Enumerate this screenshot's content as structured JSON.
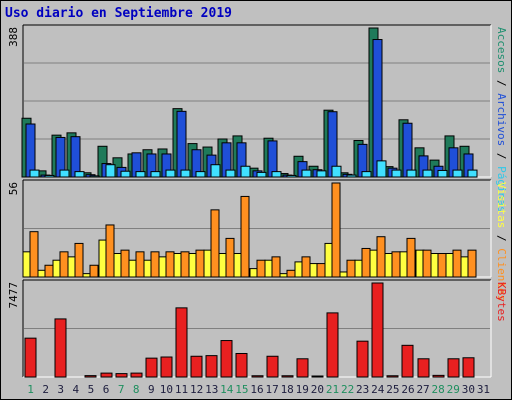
{
  "title": "Uso diario en Septiembre 2019",
  "colors": {
    "background": "#c0c0c0",
    "title": "#0000c0",
    "accesos": "#1f7a5a",
    "paginas": "#40e0ff",
    "archivos": "#1f4fd8",
    "visitas": "#ffff40",
    "clientes": "#ff9020",
    "kbytes": "#e82020",
    "weekend_day": "#1f8f5f",
    "weekday": "#202040"
  },
  "chart_data": [
    {
      "type": "bar",
      "panel": "top",
      "ylabel_parts": [
        {
          "text": "Accesos",
          "color": "#1f8f6f"
        },
        {
          "text": " / ",
          "color": "#000000"
        },
        {
          "text": "Archivos",
          "color": "#1f4fd8"
        },
        {
          "text": " / ",
          "color": "#000000"
        },
        {
          "text": "Páginas",
          "color": "#30c8e8"
        }
      ],
      "ymax_label": "388",
      "ylim": [
        0,
        388
      ],
      "categories": [
        "1",
        "2",
        "3",
        "4",
        "5",
        "6",
        "7",
        "8",
        "9",
        "10",
        "11",
        "12",
        "13",
        "14",
        "15",
        "16",
        "17",
        "18",
        "19",
        "20",
        "21",
        "22",
        "23",
        "24",
        "25",
        "26",
        "27",
        "28",
        "29",
        "30",
        "31"
      ],
      "series": [
        {
          "name": "Accesos",
          "values": [
            153,
            16,
            109,
            115,
            11,
            80,
            50,
            60,
            71,
            73,
            178,
            87,
            78,
            99,
            107,
            23,
            101,
            9,
            54,
            28,
            174,
            11,
            95,
            388,
            27,
            149,
            76,
            44,
            107,
            80,
            0
          ]
        },
        {
          "name": "Archivos",
          "values": [
            138,
            5,
            103,
            105,
            6,
            35,
            25,
            63,
            60,
            60,
            171,
            71,
            57,
            89,
            89,
            16,
            94,
            5,
            40,
            19,
            170,
            7,
            85,
            358,
            23,
            140,
            55,
            28,
            76,
            60,
            0
          ]
        },
        {
          "name": "Páginas",
          "values": [
            18,
            4,
            18,
            14,
            3,
            32,
            15,
            14,
            14,
            18,
            18,
            14,
            32,
            18,
            28,
            12,
            14,
            4,
            18,
            16,
            28,
            5,
            14,
            42,
            18,
            18,
            18,
            17,
            18,
            18,
            0
          ]
        }
      ]
    },
    {
      "type": "bar",
      "panel": "middle",
      "ylabel_parts": [
        {
          "text": "Visitas",
          "color": "#ffff40"
        },
        {
          "text": " / ",
          "color": "#000000"
        },
        {
          "text": "Clientes",
          "color": "#ff9020"
        }
      ],
      "ymax_label": "56",
      "ylim": [
        0,
        56
      ],
      "categories": [
        "1",
        "2",
        "3",
        "4",
        "5",
        "6",
        "7",
        "8",
        "9",
        "10",
        "11",
        "12",
        "13",
        "14",
        "15",
        "16",
        "17",
        "18",
        "19",
        "20",
        "21",
        "22",
        "23",
        "24",
        "25",
        "26",
        "27",
        "28",
        "29",
        "30",
        "31"
      ],
      "series": [
        {
          "name": "Visitas",
          "values": [
            15,
            4,
            10,
            12,
            2,
            22,
            14,
            10,
            10,
            12,
            14,
            14,
            16,
            14,
            14,
            5,
            10,
            2,
            9,
            8,
            20,
            3,
            10,
            16,
            14,
            15,
            16,
            14,
            14,
            12,
            0
          ]
        },
        {
          "name": "Clientes",
          "values": [
            27,
            7,
            15,
            20,
            7,
            31,
            16,
            15,
            15,
            15,
            15,
            16,
            40,
            23,
            48,
            10,
            12,
            4,
            12,
            8,
            56,
            10,
            17,
            24,
            15,
            23,
            16,
            14,
            16,
            16,
            0
          ]
        }
      ]
    },
    {
      "type": "bar",
      "panel": "bottom",
      "ylabel_parts": [
        {
          "text": "KBytes",
          "color": "#e82020"
        }
      ],
      "ymax_label": "7477",
      "ylim": [
        0,
        7477
      ],
      "categories": [
        "1",
        "2",
        "3",
        "4",
        "5",
        "6",
        "7",
        "8",
        "9",
        "10",
        "11",
        "12",
        "13",
        "14",
        "15",
        "16",
        "17",
        "18",
        "19",
        "20",
        "21",
        "22",
        "23",
        "24",
        "25",
        "26",
        "27",
        "28",
        "29",
        "30",
        "31"
      ],
      "series": [
        {
          "name": "KBytes",
          "values": [
            3090,
            0,
            4620,
            0,
            110,
            310,
            270,
            310,
            1500,
            1590,
            5500,
            1650,
            1700,
            2900,
            1870,
            100,
            1650,
            100,
            1450,
            60,
            5100,
            0,
            2850,
            7477,
            100,
            2520,
            1450,
            130,
            1450,
            1530,
            0
          ]
        }
      ],
      "x_tick_labels": [
        "1",
        "2",
        "3",
        "4",
        "5",
        "6",
        "7",
        "8",
        "9",
        "10",
        "11",
        "12",
        "13",
        "14",
        "15",
        "16",
        "17",
        "18",
        "19",
        "20",
        "21",
        "22",
        "23",
        "24",
        "25",
        "26",
        "27",
        "28",
        "29",
        "30",
        "31"
      ],
      "weekend_days": [
        "1",
        "7",
        "8",
        "14",
        "15",
        "21",
        "22",
        "28",
        "29"
      ]
    }
  ]
}
